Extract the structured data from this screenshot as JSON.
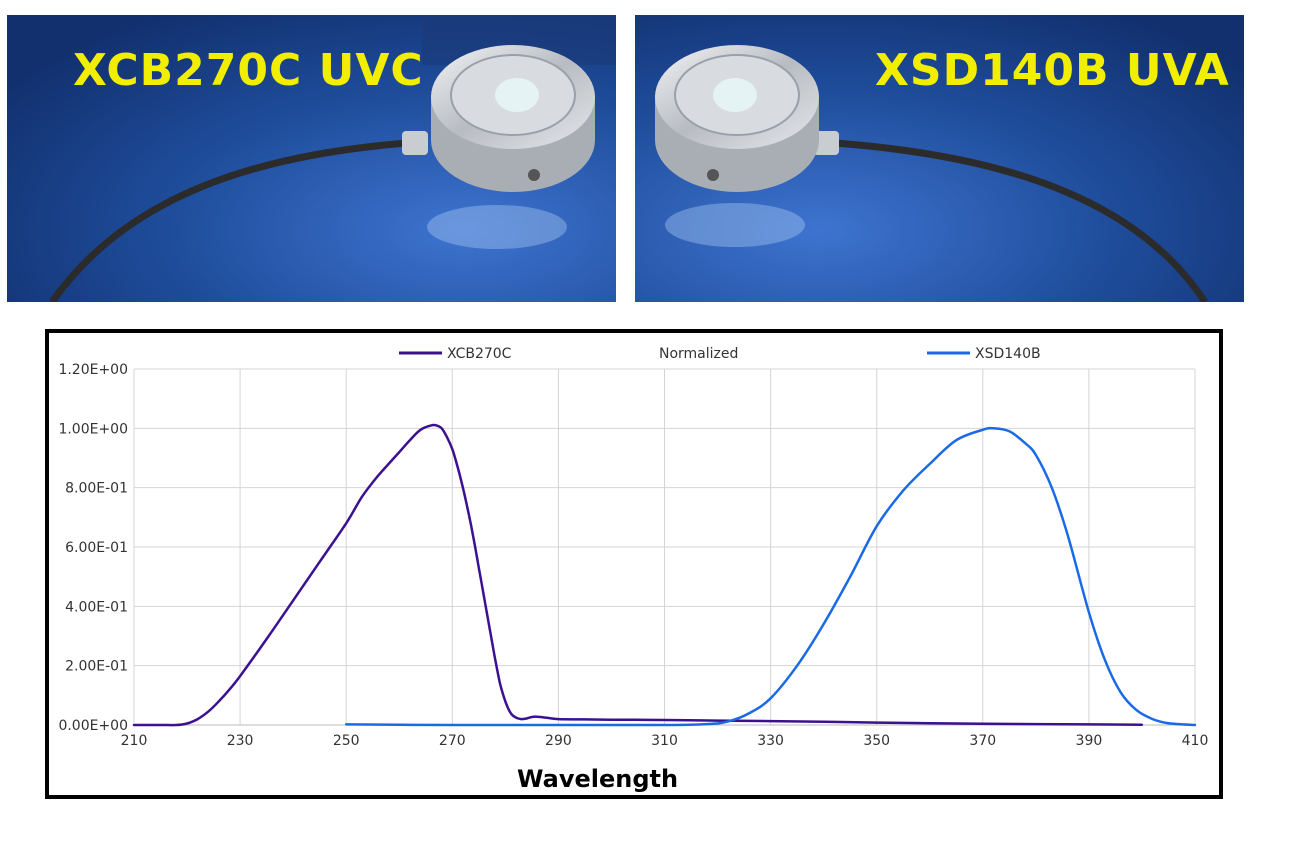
{
  "photos": {
    "left": {
      "label": "XCB270C UVC",
      "icon": "uv-sensor-icon"
    },
    "right": {
      "label": "XSD140B UVA",
      "icon": "uv-sensor-icon"
    }
  },
  "colors": {
    "background_blue": "#1b4590",
    "label_yellow": "#f2ee00",
    "xcb270c": "#3b1191",
    "xsd140b": "#1a6ae8",
    "grid": "#d4d4d4"
  },
  "chart_data": {
    "type": "line",
    "title": "Normalized",
    "xlabel": "Wavelength",
    "ylabel": "",
    "xlim": [
      210,
      410
    ],
    "ylim": [
      0,
      1.2
    ],
    "x_ticks": [
      210,
      230,
      250,
      270,
      290,
      310,
      330,
      350,
      370,
      390,
      410
    ],
    "x_tick_labels": [
      "210",
      "230",
      "250",
      "270",
      "290",
      "310",
      "330",
      "350",
      "370",
      "390",
      "410"
    ],
    "y_ticks": [
      0,
      0.2,
      0.4,
      0.6,
      0.8,
      1.0,
      1.2
    ],
    "y_tick_labels": [
      "0.00E+00",
      "2.00E-01",
      "4.00E-01",
      "6.00E-01",
      "8.00E-01",
      "1.00E+00",
      "1.20E+00"
    ],
    "grid": true,
    "legend_position": "top",
    "series": [
      {
        "name": "XCB270C",
        "color": "#3b1191",
        "x": [
          210,
          215,
          218,
          220,
          222,
          224,
          226,
          228,
          230,
          235,
          240,
          245,
          250,
          253,
          256,
          258,
          260,
          262,
          264,
          266,
          267,
          268,
          269,
          270,
          271,
          272,
          273,
          274,
          275,
          276,
          277,
          278,
          279,
          280,
          281,
          282,
          283,
          284,
          285,
          286,
          287,
          288,
          290,
          295,
          300,
          310,
          320,
          330,
          340,
          350,
          360,
          370,
          380,
          390,
          400
        ],
        "y": [
          0.0,
          0.0,
          0.0,
          0.005,
          0.02,
          0.045,
          0.08,
          0.12,
          0.165,
          0.29,
          0.42,
          0.55,
          0.68,
          0.77,
          0.84,
          0.88,
          0.92,
          0.96,
          0.995,
          1.01,
          1.01,
          1.0,
          0.97,
          0.93,
          0.87,
          0.8,
          0.72,
          0.63,
          0.53,
          0.43,
          0.33,
          0.23,
          0.14,
          0.08,
          0.04,
          0.025,
          0.02,
          0.022,
          0.027,
          0.028,
          0.026,
          0.024,
          0.02,
          0.019,
          0.018,
          0.017,
          0.015,
          0.013,
          0.011,
          0.008,
          0.006,
          0.004,
          0.003,
          0.002,
          0.001
        ]
      },
      {
        "name": "XSD140B",
        "color": "#1a6ae8",
        "x": [
          250,
          270,
          290,
          310,
          318,
          322,
          326,
          330,
          335,
          340,
          345,
          350,
          355,
          360,
          365,
          370,
          372,
          375,
          378,
          380,
          383,
          386,
          390,
          393,
          396,
          399,
          402,
          405,
          410
        ],
        "y": [
          0.002,
          0.0,
          0.0,
          0.0,
          0.003,
          0.012,
          0.04,
          0.09,
          0.2,
          0.34,
          0.5,
          0.67,
          0.79,
          0.88,
          0.96,
          0.995,
          1.0,
          0.99,
          0.95,
          0.91,
          0.8,
          0.64,
          0.38,
          0.22,
          0.11,
          0.05,
          0.02,
          0.006,
          0.0
        ]
      }
    ]
  }
}
